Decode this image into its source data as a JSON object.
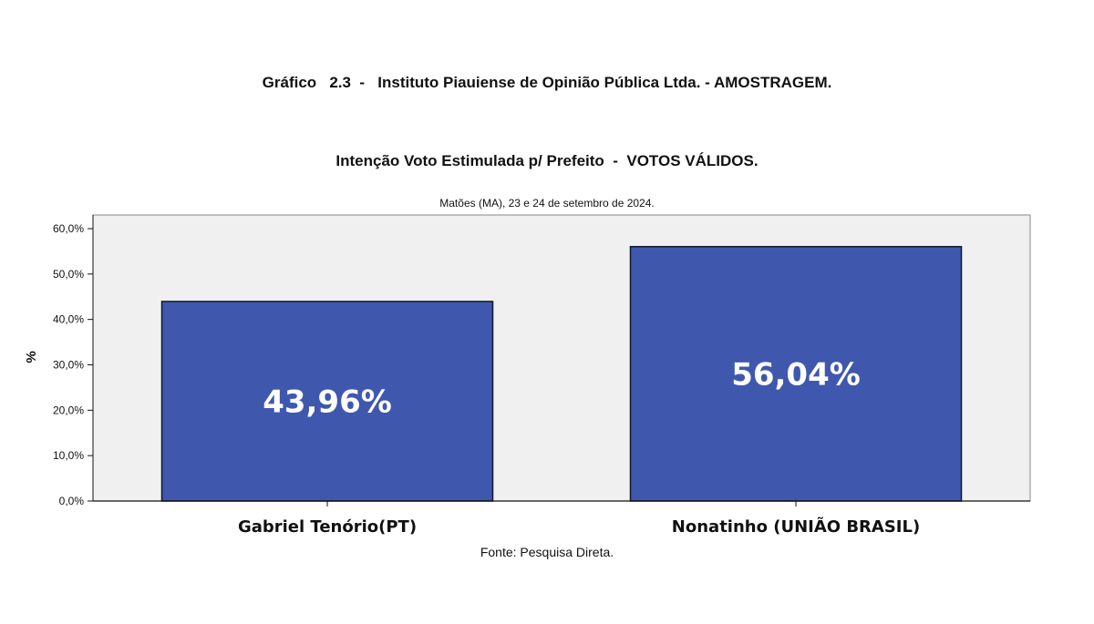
{
  "chart_data": {
    "type": "bar",
    "title": "Gráfico   2.3  -   Instituto Piauiense de Opinião Pública Ltda. - AMOSTRAGEM.",
    "subtitle": "Intenção Voto Estimulada p/ Prefeito  -  VOTOS VÁLIDOS.",
    "note": "Matões (MA), 23 e 24 de setembro de 2024.",
    "source": "Fonte: Pesquisa Direta.",
    "ylabel": "%",
    "xlabel": "",
    "categories": [
      "Gabriel Tenório(PT)",
      "Nonatinho (UNIÃO BRASIL)"
    ],
    "values": [
      43.96,
      56.04
    ],
    "data_labels": [
      "43,96%",
      "56,04%"
    ],
    "ylim": [
      0,
      60
    ],
    "yticks": [
      0,
      10,
      20,
      30,
      40,
      50,
      60
    ],
    "ytick_labels": [
      "0,0%",
      "10,0%",
      "20,0%",
      "30,0%",
      "40,0%",
      "50,0%",
      "60,0%"
    ],
    "grid": false,
    "colors": {
      "bar": "#3f58ae",
      "bar_border": "#111827",
      "plot_bg": "#f0f0f0",
      "data_label": "#ffffff"
    }
  }
}
